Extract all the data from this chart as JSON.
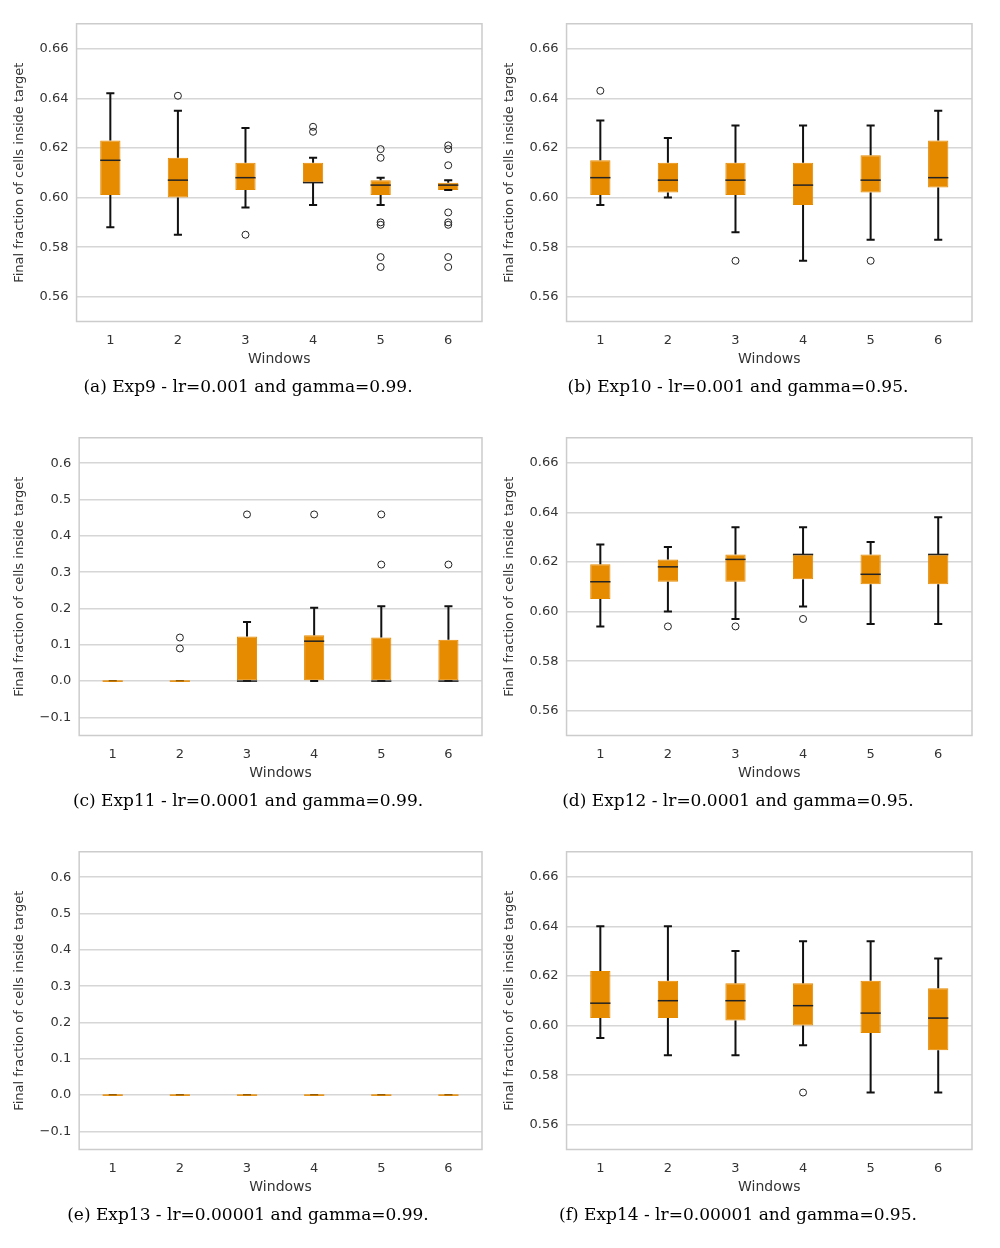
{
  "chart_data": [
    {
      "type": "box",
      "annotations": [
        "(a) Exp9 - lr=0.001 and gamma=0.99."
      ],
      "xlabel": "Windows",
      "ylabel": "Final fraction of cells inside target",
      "categories": [
        "1",
        "2",
        "3",
        "4",
        "5",
        "6"
      ],
      "ylim": [
        0.55,
        0.67
      ],
      "yticks": [
        {
          "value": 0.56,
          "label": "0.56"
        },
        {
          "value": 0.58,
          "label": "0.58"
        },
        {
          "value": 0.6,
          "label": "0.60"
        },
        {
          "value": 0.62,
          "label": "0.62"
        },
        {
          "value": 0.64,
          "label": "0.64"
        },
        {
          "value": 0.66,
          "label": "0.66"
        }
      ],
      "grid": "y",
      "series": [
        {
          "color": "#e68a00",
          "boxes": [
            {
              "low": 0.588,
              "q1": 0.601,
              "median": 0.615,
              "q3": 0.623,
              "high": 0.642
            },
            {
              "low": 0.585,
              "q1": 0.6,
              "median": 0.607,
              "q3": 0.616,
              "high": 0.635,
              "outliers": [
                0.641
              ]
            },
            {
              "low": 0.596,
              "q1": 0.603,
              "median": 0.608,
              "q3": 0.614,
              "high": 0.628,
              "outliers": [
                0.585
              ]
            },
            {
              "low": 0.597,
              "q1": 0.606,
              "median": 0.606,
              "q3": 0.614,
              "high": 0.616,
              "outliers": [
                0.6285,
                0.6265
              ]
            },
            {
              "low": 0.597,
              "q1": 0.601,
              "median": 0.605,
              "q3": 0.607,
              "high": 0.608,
              "outliers": [
                0.6195,
                0.616,
                0.59,
                0.589,
                0.576,
                0.572
              ]
            },
            {
              "low": 0.603,
              "q1": 0.603,
              "median": 0.605,
              "q3": 0.606,
              "high": 0.607,
              "outliers": [
                0.621,
                0.6195,
                0.613,
                0.594,
                0.59,
                0.589,
                0.576,
                0.572
              ]
            }
          ]
        }
      ]
    },
    {
      "type": "box",
      "annotations": [
        "(b) Exp10 - lr=0.001 and gamma=0.95."
      ],
      "xlabel": "Windows",
      "ylabel": "Final fraction of cells inside target",
      "categories": [
        "1",
        "2",
        "3",
        "4",
        "5",
        "6"
      ],
      "ylim": [
        0.55,
        0.67
      ],
      "yticks": [
        {
          "value": 0.56,
          "label": "0.56"
        },
        {
          "value": 0.58,
          "label": "0.58"
        },
        {
          "value": 0.6,
          "label": "0.60"
        },
        {
          "value": 0.62,
          "label": "0.62"
        },
        {
          "value": 0.64,
          "label": "0.64"
        },
        {
          "value": 0.66,
          "label": "0.66"
        }
      ],
      "grid": "y",
      "series": [
        {
          "color": "#e68a00",
          "boxes": [
            {
              "low": 0.597,
              "q1": 0.601,
              "median": 0.608,
              "q3": 0.615,
              "high": 0.631,
              "outliers": [
                0.643
              ]
            },
            {
              "low": 0.6,
              "q1": 0.602,
              "median": 0.607,
              "q3": 0.614,
              "high": 0.624
            },
            {
              "low": 0.586,
              "q1": 0.601,
              "median": 0.607,
              "q3": 0.614,
              "high": 0.629,
              "outliers": [
                0.5745
              ]
            },
            {
              "low": 0.5745,
              "q1": 0.597,
              "median": 0.605,
              "q3": 0.614,
              "high": 0.629
            },
            {
              "low": 0.583,
              "q1": 0.602,
              "median": 0.607,
              "q3": 0.617,
              "high": 0.629,
              "outliers": [
                0.5745
              ]
            },
            {
              "low": 0.583,
              "q1": 0.604,
              "median": 0.608,
              "q3": 0.623,
              "high": 0.635
            }
          ]
        }
      ]
    },
    {
      "type": "box",
      "annotations": [
        "(c) Exp11 - lr=0.0001 and gamma=0.99."
      ],
      "xlabel": "Windows",
      "ylabel": "Final fraction of cells inside target",
      "categories": [
        "1",
        "2",
        "3",
        "4",
        "5",
        "6"
      ],
      "ylim": [
        -0.15,
        0.67
      ],
      "yticks": [
        {
          "value": -0.1,
          "label": "−0.1"
        },
        {
          "value": 0,
          "label": "0.0"
        },
        0.1,
        0.2,
        0.3,
        0.4,
        0.5,
        0.6
      ],
      "grid": "y",
      "series": [
        {
          "color": "#e68a00",
          "boxes": [
            {
              "low": 0,
              "q1": 0,
              "median": 0,
              "q3": 0,
              "high": 0
            },
            {
              "low": 0,
              "q1": 0,
              "median": 0,
              "q3": 0,
              "high": 0,
              "outliers": [
                0.09,
                0.12
              ]
            },
            {
              "low": 0,
              "q1": 0,
              "median": 0,
              "q3": 0.123,
              "high": 0.163,
              "outliers": [
                0.459
              ]
            },
            {
              "low": 0,
              "q1": 0,
              "median": 0.11,
              "q3": 0.126,
              "high": 0.202,
              "outliers": [
                0.459
              ]
            },
            {
              "low": 0,
              "q1": 0,
              "median": 0,
              "q3": 0.12,
              "high": 0.206,
              "outliers": [
                0.459,
                0.321
              ]
            },
            {
              "low": 0,
              "q1": 0,
              "median": 0,
              "q3": 0.114,
              "high": 0.206,
              "outliers": [
                0.321
              ]
            }
          ]
        }
      ]
    },
    {
      "type": "box",
      "annotations": [
        "(d) Exp12 - lr=0.0001 and gamma=0.95."
      ],
      "xlabel": "Windows",
      "ylabel": "Final fraction of cells inside target",
      "categories": [
        "1",
        "2",
        "3",
        "4",
        "5",
        "6"
      ],
      "ylim": [
        0.55,
        0.67
      ],
      "yticks": [
        {
          "value": 0.56,
          "label": "0.56"
        },
        {
          "value": 0.58,
          "label": "0.58"
        },
        {
          "value": 0.6,
          "label": "0.60"
        },
        {
          "value": 0.62,
          "label": "0.62"
        },
        {
          "value": 0.64,
          "label": "0.64"
        },
        {
          "value": 0.66,
          "label": "0.66"
        }
      ],
      "grid": "y",
      "series": [
        {
          "color": "#e68a00",
          "boxes": [
            {
              "low": 0.594,
              "q1": 0.605,
              "median": 0.612,
              "q3": 0.619,
              "high": 0.627
            },
            {
              "low": 0.6,
              "q1": 0.612,
              "median": 0.618,
              "q3": 0.621,
              "high": 0.626,
              "outliers": [
                0.594
              ]
            },
            {
              "low": 0.597,
              "q1": 0.612,
              "median": 0.621,
              "q3": 0.623,
              "high": 0.634,
              "outliers": [
                0.594
              ]
            },
            {
              "low": 0.602,
              "q1": 0.613,
              "median": 0.623,
              "q3": 0.623,
              "high": 0.634,
              "outliers": [
                0.597
              ]
            },
            {
              "low": 0.595,
              "q1": 0.611,
              "median": 0.615,
              "q3": 0.623,
              "high": 0.628
            },
            {
              "low": 0.595,
              "q1": 0.611,
              "median": 0.623,
              "q3": 0.623,
              "high": 0.638
            }
          ]
        }
      ]
    },
    {
      "type": "box",
      "annotations": [
        "(e) Exp13 - lr=0.00001 and gamma=0.99."
      ],
      "xlabel": "Windows",
      "ylabel": "Final fraction of cells inside target",
      "categories": [
        "1",
        "2",
        "3",
        "4",
        "5",
        "6"
      ],
      "ylim": [
        -0.15,
        0.67
      ],
      "yticks": [
        {
          "value": -0.1,
          "label": "−0.1"
        },
        {
          "value": 0,
          "label": "0.0"
        },
        0.1,
        0.2,
        0.3,
        0.4,
        0.5,
        0.6
      ],
      "grid": "y",
      "series": [
        {
          "color": "#e68a00",
          "boxes": [
            {
              "low": 0,
              "q1": 0,
              "median": 0,
              "q3": 0,
              "high": 0
            },
            {
              "low": 0,
              "q1": 0,
              "median": 0,
              "q3": 0,
              "high": 0
            },
            {
              "low": 0,
              "q1": 0,
              "median": 0,
              "q3": 0,
              "high": 0
            },
            {
              "low": 0,
              "q1": 0,
              "median": 0,
              "q3": 0,
              "high": 0
            },
            {
              "low": 0,
              "q1": 0,
              "median": 0,
              "q3": 0,
              "high": 0
            },
            {
              "low": 0,
              "q1": 0,
              "median": 0,
              "q3": 0,
              "high": 0
            }
          ]
        }
      ]
    },
    {
      "type": "box",
      "annotations": [
        "(f) Exp14 - lr=0.00001 and gamma=0.95."
      ],
      "xlabel": "Windows",
      "ylabel": "Final fraction of cells inside target",
      "categories": [
        "1",
        "2",
        "3",
        "4",
        "5",
        "6"
      ],
      "ylim": [
        0.55,
        0.67
      ],
      "yticks": [
        {
          "value": 0.56,
          "label": "0.56"
        },
        {
          "value": 0.58,
          "label": "0.58"
        },
        {
          "value": 0.6,
          "label": "0.60"
        },
        {
          "value": 0.62,
          "label": "0.62"
        },
        {
          "value": 0.64,
          "label": "0.64"
        },
        {
          "value": 0.66,
          "label": "0.66"
        }
      ],
      "grid": "y",
      "series": [
        {
          "color": "#e68a00",
          "boxes": [
            {
              "low": 0.595,
              "q1": 0.603,
              "median": 0.609,
              "q3": 0.622,
              "high": 0.64
            },
            {
              "low": 0.588,
              "q1": 0.603,
              "median": 0.61,
              "q3": 0.618,
              "high": 0.64
            },
            {
              "low": 0.588,
              "q1": 0.602,
              "median": 0.61,
              "q3": 0.617,
              "high": 0.63
            },
            {
              "low": 0.592,
              "q1": 0.6,
              "median": 0.608,
              "q3": 0.617,
              "high": 0.634,
              "outliers": [
                0.573
              ]
            },
            {
              "low": 0.573,
              "q1": 0.597,
              "median": 0.605,
              "q3": 0.618,
              "high": 0.634
            },
            {
              "low": 0.573,
              "q1": 0.59,
              "median": 0.603,
              "q3": 0.615,
              "high": 0.627
            }
          ]
        }
      ]
    }
  ]
}
